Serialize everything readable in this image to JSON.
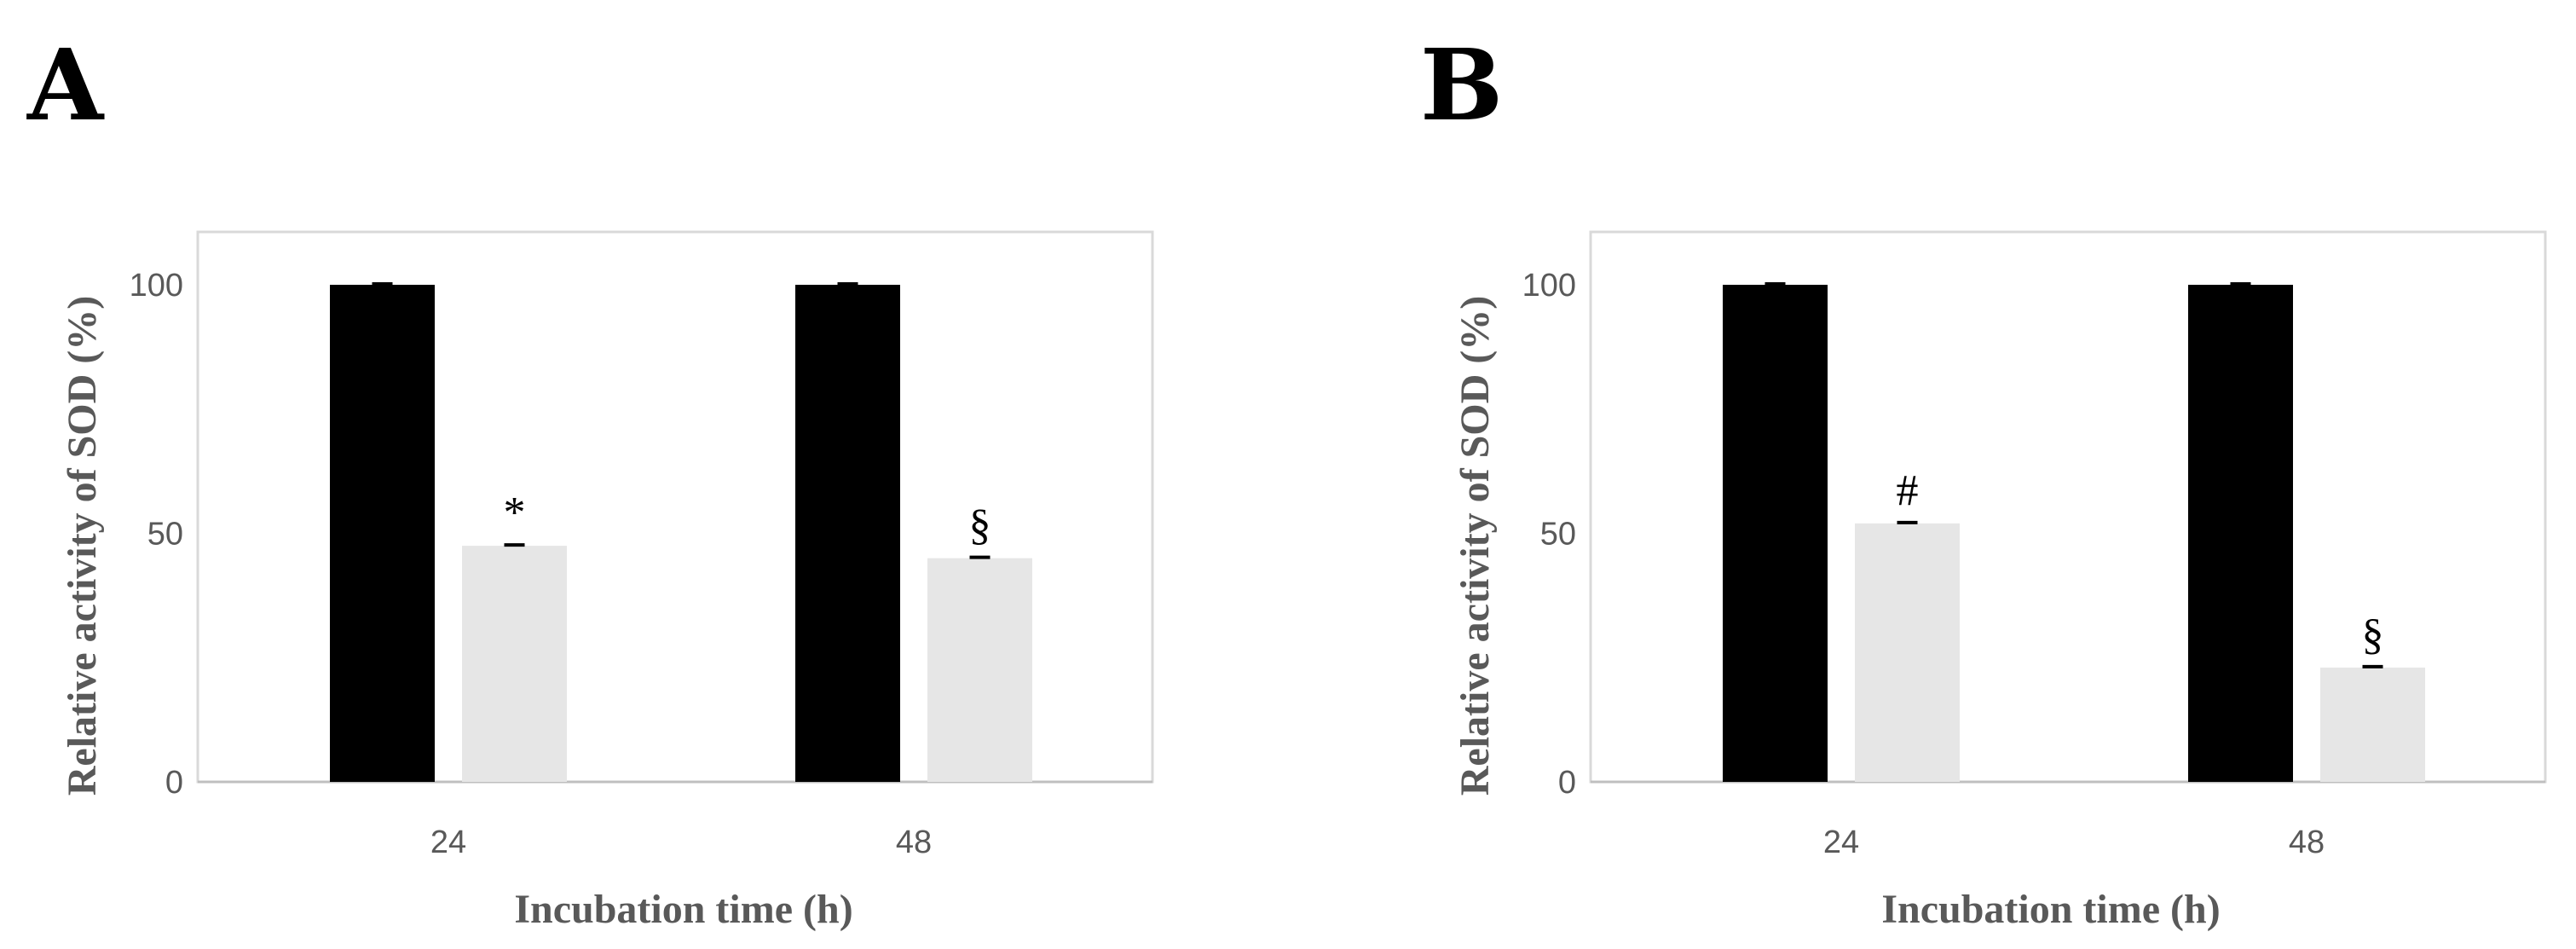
{
  "chart_data": [
    {
      "panel": "A",
      "type": "bar",
      "categories": [
        "24",
        "48"
      ],
      "series": [
        {
          "color": "#000000",
          "values": [
            100,
            100
          ]
        },
        {
          "color": "#e6e6e6",
          "values": [
            47.5,
            45
          ]
        }
      ],
      "annotations": [
        {
          "series": 1,
          "category": 0,
          "text": "*"
        },
        {
          "series": 1,
          "category": 1,
          "text": "§"
        }
      ],
      "xlabel": "Incubation time (h)",
      "ylabel": "Relative activity of SOD  (%)",
      "ylim": [
        0,
        110
      ],
      "yticks": [
        0,
        50,
        100
      ],
      "grid": false
    },
    {
      "panel": "B",
      "type": "bar",
      "categories": [
        "24",
        "48"
      ],
      "series": [
        {
          "color": "#000000",
          "values": [
            100,
            100
          ]
        },
        {
          "color": "#e6e6e6",
          "values": [
            52,
            23
          ]
        }
      ],
      "annotations": [
        {
          "series": 1,
          "category": 0,
          "text": "#"
        },
        {
          "series": 1,
          "category": 1,
          "text": "§"
        }
      ],
      "xlabel": "Incubation time (h)",
      "ylabel": "Relative activity of SOD  (%)",
      "ylim": [
        0,
        110
      ],
      "yticks": [
        0,
        50,
        100
      ],
      "grid": false
    }
  ]
}
